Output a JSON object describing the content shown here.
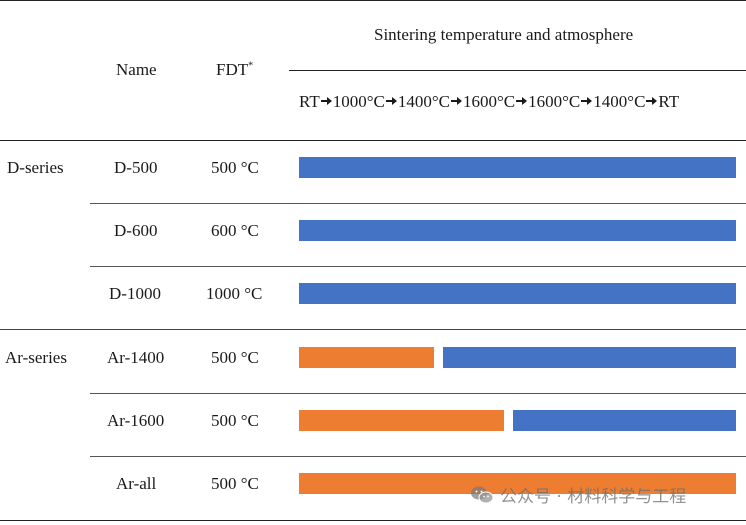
{
  "header": {
    "name_label": "Name",
    "fdt_label": "FDT",
    "fdt_sup": "*",
    "sintering_label": "Sintering temperature and atmosphere",
    "steps": [
      "RT",
      "1000°C",
      "1400°C",
      "1600°C",
      "1600°C",
      "1400°C",
      "RT"
    ]
  },
  "groups": [
    {
      "series": "D-series",
      "rows": [
        {
          "name": "D-500",
          "fdt": "500 °C",
          "segments": [
            {
              "color": "blue",
              "start": 0,
              "end": 1
            }
          ]
        },
        {
          "name": "D-600",
          "fdt": "600 °C",
          "segments": [
            {
              "color": "blue",
              "start": 0,
              "end": 1
            }
          ]
        },
        {
          "name": "D-1000",
          "fdt": "1000 °C",
          "segments": [
            {
              "color": "blue",
              "start": 0,
              "end": 1
            }
          ]
        }
      ]
    },
    {
      "series": "Ar-series",
      "rows": [
        {
          "name": "Ar-1400",
          "fdt": "500 °C",
          "segments": [
            {
              "color": "orange",
              "start": 0,
              "end": 0.31
            },
            {
              "color": "blue",
              "start": 0.33,
              "end": 1
            }
          ]
        },
        {
          "name": "Ar-1600",
          "fdt": "500 °C",
          "segments": [
            {
              "color": "orange",
              "start": 0,
              "end": 0.47
            },
            {
              "color": "blue",
              "start": 0.49,
              "end": 1
            }
          ]
        },
        {
          "name": "Ar-all",
          "fdt": "500 °C",
          "segments": [
            {
              "color": "orange",
              "start": 0,
              "end": 1
            }
          ]
        }
      ]
    }
  ],
  "colors": {
    "blue": "#4472c4",
    "orange": "#ed7d31"
  },
  "watermark": {
    "text": "公众号 · 材料科学与工程",
    "icon": "wechat-icon"
  }
}
